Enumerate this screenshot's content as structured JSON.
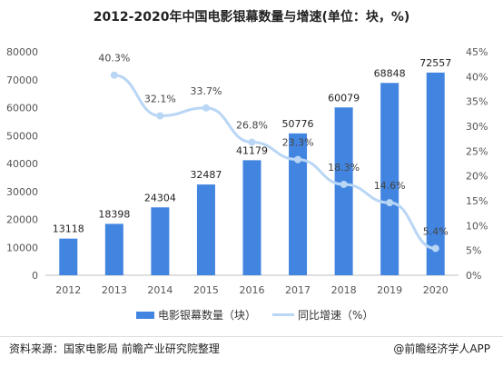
{
  "title": "2012-2020年中国电影银幕数量与增速(单位：块，%)",
  "legend": {
    "bar_label": "电影银幕数量（块）",
    "line_label": "同比增速（%）"
  },
  "footer": {
    "source": "资料来源：国家电影局 前瞻产业研究院整理",
    "brand": "@前瞻经济学人APP"
  },
  "colors": {
    "bar": "#4285e0",
    "line": "#b9d6f5",
    "point": "#b9d6f5"
  },
  "chart_data": {
    "type": "bar",
    "title": "2012-2020年中国电影银幕数量与增速(单位：块，%)",
    "categories": [
      "2012",
      "2013",
      "2014",
      "2015",
      "2016",
      "2017",
      "2018",
      "2019",
      "2020"
    ],
    "series": [
      {
        "name": "电影银幕数量（块）",
        "type": "bar",
        "axis": "left",
        "values": [
          13118,
          18398,
          24304,
          32487,
          41179,
          50776,
          60079,
          68848,
          72557
        ]
      },
      {
        "name": "同比增速（%）",
        "type": "line",
        "axis": "right",
        "values": [
          null,
          40.3,
          32.1,
          33.7,
          26.8,
          23.3,
          18.3,
          14.6,
          5.4
        ],
        "labels": [
          "",
          "40.3%",
          "32.1%",
          "33.7%",
          "26.8%",
          "23.3%",
          "18.3%",
          "14.6%",
          "5.4%"
        ]
      }
    ],
    "y_left": {
      "range": [
        0,
        80000
      ],
      "ticks": [
        0,
        10000,
        20000,
        30000,
        40000,
        50000,
        60000,
        70000,
        80000
      ],
      "tick_labels": [
        "0",
        "10000",
        "20000",
        "30000",
        "40000",
        "50000",
        "60000",
        "70000",
        "80000"
      ]
    },
    "y_right": {
      "range": [
        0,
        45
      ],
      "ticks": [
        0,
        5,
        10,
        15,
        20,
        25,
        30,
        35,
        40,
        45
      ],
      "tick_labels": [
        "0%",
        "5%",
        "10%",
        "15%",
        "20%",
        "25%",
        "30%",
        "35%",
        "40%",
        "45%"
      ]
    },
    "grid": false,
    "legend_position": "bottom"
  }
}
